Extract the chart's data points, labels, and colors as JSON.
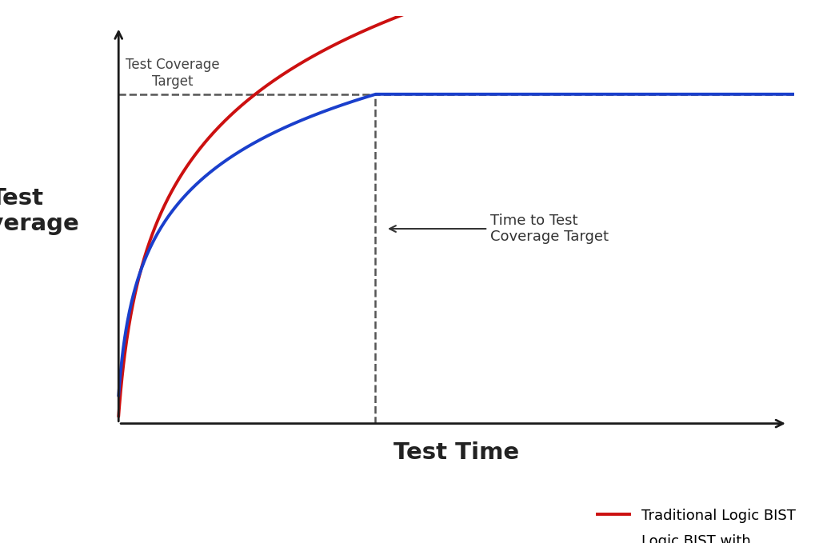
{
  "background_color": "#ffffff",
  "xlabel": "Test Time",
  "ylabel": "Test\nCoverage",
  "xlabel_fontsize": 21,
  "ylabel_fontsize": 21,
  "xlim": [
    0,
    10
  ],
  "ylim": [
    -1.5,
    10
  ],
  "target_coverage": 7.8,
  "dashed_x": 3.8,
  "red_curve_color": "#cc1010",
  "blue_curve_color": "#1a3fcc",
  "dashed_line_color": "#555555",
  "arrow_color": "#333333",
  "annotation_text": "Time to Test\nCoverage Target",
  "annotation_fontsize": 13,
  "target_label": "Test Coverage\nTarget",
  "target_label_fontsize": 12,
  "legend_red": "Traditional Logic BIST",
  "legend_blue": "Logic BIST with\nObservation Scan",
  "legend_fontsize": 13,
  "axis_color": "#1a1a1a",
  "line_width": 2.8
}
